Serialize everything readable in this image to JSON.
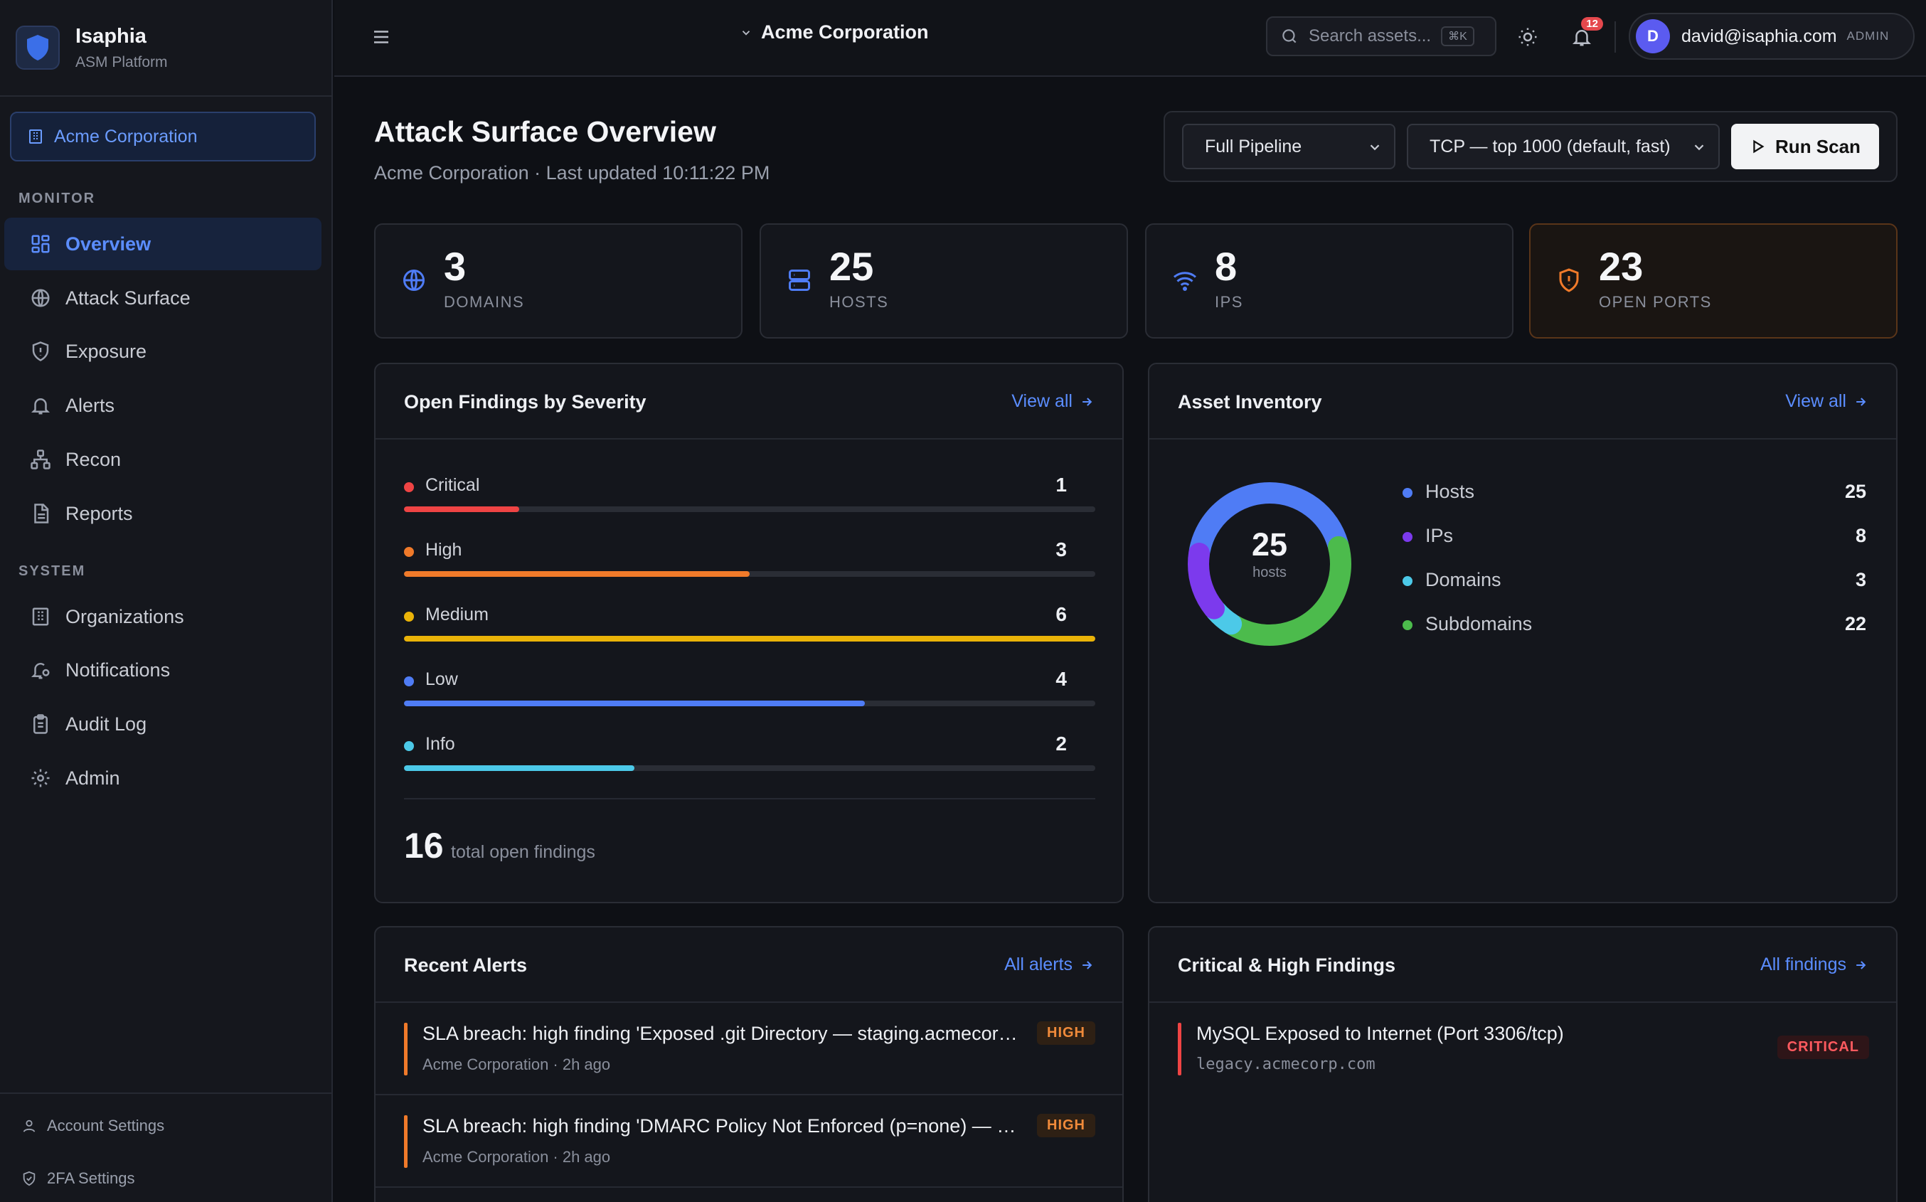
{
  "app": {
    "name": "Isaphia",
    "subtitle": "ASM Platform"
  },
  "sidebar": {
    "org_label": "Acme Corporation",
    "sections": [
      {
        "label": "MONITOR",
        "items": [
          {
            "label": "Overview",
            "icon": "grid-icon",
            "active": true
          },
          {
            "label": "Attack Surface",
            "icon": "globe-icon"
          },
          {
            "label": "Exposure",
            "icon": "shield-icon"
          },
          {
            "label": "Alerts",
            "icon": "bell-icon"
          },
          {
            "label": "Recon",
            "icon": "network-icon"
          },
          {
            "label": "Reports",
            "icon": "file-icon"
          }
        ]
      },
      {
        "label": "SYSTEM",
        "items": [
          {
            "label": "Organizations",
            "icon": "building-icon"
          },
          {
            "label": "Notifications",
            "icon": "bell-cog-icon"
          },
          {
            "label": "Audit Log",
            "icon": "clipboard-icon"
          },
          {
            "label": "Admin",
            "icon": "gear-icon"
          }
        ]
      }
    ],
    "footer": {
      "account": "Account Settings",
      "twofa": "2FA Settings"
    }
  },
  "topbar": {
    "org": "Acme Corporation",
    "search_placeholder": "Search assets...",
    "search_kbd": "⌘K",
    "notification_count": "12",
    "user": {
      "initial": "D",
      "email": "david@isaphia.com",
      "role": "ADMIN"
    }
  },
  "page": {
    "title": "Attack Surface Overview",
    "subtitle": "Acme Corporation · Last updated 10:11:22 PM"
  },
  "scan": {
    "pipeline": "Full Pipeline",
    "ports": "TCP — top 1000 (default, fast)",
    "run_label": "Run Scan"
  },
  "stats": [
    {
      "value": "3",
      "label": "DOMAINS",
      "icon": "globe-icon"
    },
    {
      "value": "25",
      "label": "HOSTS",
      "icon": "server-icon"
    },
    {
      "value": "8",
      "label": "IPS",
      "icon": "wifi-icon"
    },
    {
      "value": "23",
      "label": "OPEN PORTS",
      "icon": "shield-alert-icon"
    }
  ],
  "findings": {
    "title": "Open Findings by Severity",
    "link": "View all",
    "rows": [
      {
        "name": "Critical",
        "count": 1,
        "color": "#ef4444",
        "fraction": 0.167
      },
      {
        "name": "High",
        "count": 3,
        "color": "#f07a2a",
        "fraction": 0.5
      },
      {
        "name": "Medium",
        "count": 6,
        "color": "#eab308",
        "fraction": 1.0
      },
      {
        "name": "Low",
        "count": 4,
        "color": "#4f7cf5",
        "fraction": 0.667
      },
      {
        "name": "Info",
        "count": 2,
        "color": "#4cc9e8",
        "fraction": 0.333
      }
    ],
    "total": "16",
    "total_label": "total open findings"
  },
  "inventory": {
    "title": "Asset Inventory",
    "link": "View all",
    "center_value": "25",
    "center_label": "hosts",
    "items": [
      {
        "name": "Hosts",
        "value": 25,
        "color": "#4f7cf5"
      },
      {
        "name": "IPs",
        "value": 8,
        "color": "#7c3aed"
      },
      {
        "name": "Domains",
        "value": 3,
        "color": "#4cc9e8"
      },
      {
        "name": "Subdomains",
        "value": 22,
        "color": "#4cbb4c"
      }
    ]
  },
  "alerts": {
    "title": "Recent Alerts",
    "link": "All alerts",
    "items": [
      {
        "title": "SLA breach: high finding 'Exposed .git Directory — staging.acmecorp.com' not resolved",
        "meta": "Acme Corporation · 2h ago",
        "severity": "HIGH"
      },
      {
        "title": "SLA breach: high finding 'DMARC Policy Not Enforced (p=none) — acmecorp.com' not resolved",
        "meta": "Acme Corporation · 2h ago",
        "severity": "HIGH"
      }
    ]
  },
  "critical_findings": {
    "title": "Critical & High Findings",
    "link": "All findings",
    "items": [
      {
        "title": "MySQL Exposed to Internet (Port 3306/tcp)",
        "host": "legacy.acmecorp.com",
        "severity": "CRITICAL"
      }
    ]
  }
}
